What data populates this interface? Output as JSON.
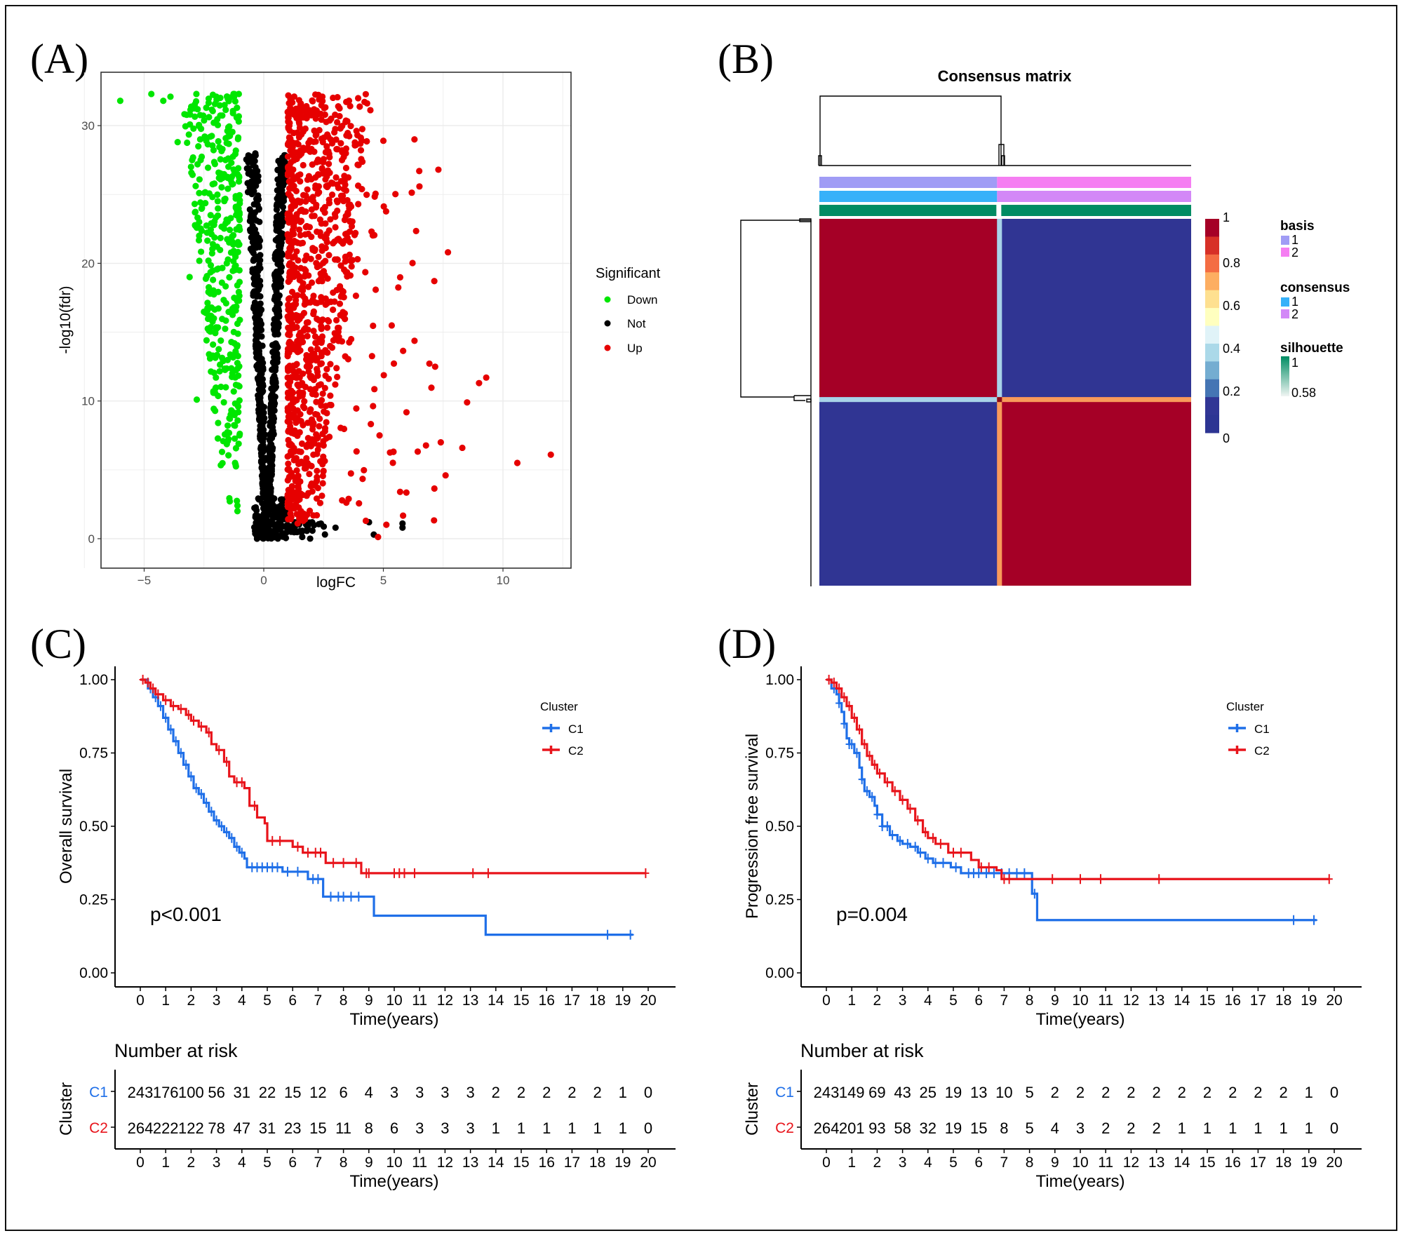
{
  "figure": {
    "panel_labels": [
      "(A)",
      "(B)",
      "(C)",
      "(D)"
    ]
  },
  "chart_data": [
    {
      "panel": "A",
      "type": "scatter",
      "title": "",
      "xlabel": "logFC",
      "ylabel": "-log10(fdr)",
      "xlim": [
        -6.8,
        12.9
      ],
      "ylim": [
        -1.6,
        33.4
      ],
      "xticks": [
        -5,
        0,
        5,
        10
      ],
      "yticks": [
        0,
        10,
        20,
        30
      ],
      "grid": true,
      "legend": {
        "title": "Significant",
        "position": "right",
        "entries": [
          {
            "label": "Down",
            "color": "#00e600"
          },
          {
            "label": "Not",
            "color": "#000000"
          },
          {
            "label": "Up",
            "color": "#e60000"
          }
        ]
      },
      "groups": [
        {
          "name": "Down",
          "color": "#00e600",
          "description": "logFC < -1, spread from -6 to -1; fdr up to ~32",
          "notable_points": [
            [
              -6.0,
              31.8
            ],
            [
              -4.7,
              32.3
            ],
            [
              -4.2,
              31.8
            ],
            [
              -3.9,
              32.1
            ],
            [
              -3.6,
              28.8
            ],
            [
              -3.1,
              19.0
            ],
            [
              -2.8,
              10.1
            ],
            [
              -2.7,
              22.0
            ],
            [
              -2.7,
              23.0
            ],
            [
              -2.7,
              25.1
            ],
            [
              -2.0,
              11.7
            ],
            [
              -1.7,
              12.9
            ],
            [
              -1.5,
              7.1
            ],
            [
              -1.2,
              5.5
            ],
            [
              -1.1,
              2.4
            ],
            [
              -1.1,
              2.0
            ]
          ]
        },
        {
          "name": "Not",
          "color": "#000000",
          "description": "-1 < logFC < 1, V-shaped cloud from 0 to ~28",
          "notable_points": [
            [
              -0.2,
              21.3
            ],
            [
              3.0,
              0.8
            ],
            [
              4.4,
              1.2
            ],
            [
              4.6,
              0.3
            ],
            [
              5.8,
              1.1
            ],
            [
              5.8,
              0.8
            ]
          ]
        },
        {
          "name": "Up",
          "color": "#e60000",
          "description": "logFC > 1, dense from 1 to 4, sparse to 12",
          "notable_points": [
            [
              5.0,
              28.9
            ],
            [
              6.3,
              29.0
            ],
            [
              7.3,
              26.8
            ],
            [
              6.5,
              26.7
            ],
            [
              7.7,
              20.8
            ],
            [
              9.3,
              11.7
            ],
            [
              9.0,
              11.3
            ],
            [
              8.5,
              9.9
            ],
            [
              8.3,
              6.6
            ],
            [
              10.6,
              5.5
            ],
            [
              12.0,
              6.1
            ],
            [
              7.6,
              4.6
            ],
            [
              7.4,
              7.0
            ],
            [
              5.7,
              3.4
            ]
          ]
        }
      ]
    },
    {
      "panel": "B",
      "type": "heatmap",
      "title": "Consensus matrix",
      "clusters": 2,
      "cluster_fraction": [
        0.478,
        0.522
      ],
      "matrix": [
        [
          1,
          0
        ],
        [
          0,
          1
        ]
      ],
      "colorbar": {
        "min": 0,
        "max": 1,
        "ticks": [
          "1",
          "0.8",
          "0.6",
          "0.4",
          "0.2",
          "0"
        ],
        "colors": [
          "#a50026",
          "#d73027",
          "#f46d43",
          "#fdae61",
          "#fee090",
          "#ffffbf",
          "#e0f3f8",
          "#abd9e9",
          "#74add1",
          "#4575b4",
          "#313695",
          "#2d3593"
        ]
      },
      "annotations": [
        {
          "name": "basis",
          "entries": [
            {
              "label": "1",
              "color": "#a09cf5"
            },
            {
              "label": "2",
              "color": "#f57ef2"
            }
          ]
        },
        {
          "name": "consensus",
          "entries": [
            {
              "label": "1",
              "color": "#37b1f9"
            },
            {
              "label": "2",
              "color": "#d388f7"
            }
          ]
        },
        {
          "name": "silhouette",
          "range_labels": [
            "1",
            "0.58"
          ],
          "color_high": "#008c63",
          "color_low": "#f0f5f3"
        }
      ],
      "cell_colors": {
        "high": "#a50026",
        "low": "#303593",
        "divider_top_left": "#a8d3e8",
        "divider_bottom_right": "#f89b5a"
      }
    },
    {
      "panel": "C",
      "type": "line",
      "subtype": "kaplan-meier",
      "xlabel": "Time(years)",
      "ylabel": "Overall survival",
      "xlim": [
        0,
        20
      ],
      "ylim": [
        0,
        1
      ],
      "xticks": [
        0,
        1,
        2,
        3,
        4,
        5,
        6,
        7,
        8,
        9,
        10,
        11,
        12,
        13,
        14,
        15,
        16,
        17,
        18,
        19,
        20
      ],
      "yticks": [
        "0.00",
        "0.25",
        "0.50",
        "0.75",
        "1.00"
      ],
      "annotation": "p<0.001",
      "legend": {
        "title": "Cluster",
        "position": "top-right"
      },
      "series": [
        {
          "name": "C1",
          "color": "#1f6fe8",
          "steps": [
            [
              0,
              1.0
            ],
            [
              0.3,
              0.97
            ],
            [
              0.5,
              0.94
            ],
            [
              0.7,
              0.91
            ],
            [
              0.9,
              0.87
            ],
            [
              1.1,
              0.83
            ],
            [
              1.3,
              0.79
            ],
            [
              1.5,
              0.75
            ],
            [
              1.7,
              0.71
            ],
            [
              1.9,
              0.67
            ],
            [
              2.1,
              0.63
            ],
            [
              2.3,
              0.61
            ],
            [
              2.5,
              0.58
            ],
            [
              2.7,
              0.55
            ],
            [
              2.9,
              0.52
            ],
            [
              3.1,
              0.5
            ],
            [
              3.3,
              0.48
            ],
            [
              3.5,
              0.46
            ],
            [
              3.7,
              0.43
            ],
            [
              3.9,
              0.41
            ],
            [
              4.1,
              0.39
            ],
            [
              4.2,
              0.36
            ],
            [
              5.6,
              0.345
            ],
            [
              6.6,
              0.32
            ],
            [
              7.2,
              0.26
            ],
            [
              9.2,
              0.195
            ],
            [
              13.6,
              0.13
            ],
            [
              19.4,
              0.13
            ]
          ],
          "censor_times": [
            0.4,
            0.6,
            0.8,
            1.0,
            1.2,
            1.4,
            1.6,
            1.8,
            2.0,
            2.2,
            2.4,
            2.6,
            2.8,
            3.0,
            3.2,
            3.4,
            3.6,
            3.8,
            4.0,
            4.4,
            4.6,
            4.8,
            5.0,
            5.2,
            5.4,
            5.8,
            6.2,
            6.8,
            7.0,
            7.5,
            7.8,
            8.0,
            8.3,
            8.6,
            18.4,
            19.3
          ],
          "at_risk": [
            243,
            176,
            100,
            56,
            31,
            22,
            15,
            12,
            6,
            4,
            3,
            3,
            3,
            3,
            2,
            2,
            2,
            2,
            2,
            1,
            0
          ]
        },
        {
          "name": "C2",
          "color": "#e8141b",
          "steps": [
            [
              0,
              1.0
            ],
            [
              0.2,
              0.99
            ],
            [
              0.4,
              0.97
            ],
            [
              0.6,
              0.95
            ],
            [
              0.9,
              0.93
            ],
            [
              1.2,
              0.91
            ],
            [
              1.5,
              0.9
            ],
            [
              1.8,
              0.88
            ],
            [
              2.0,
              0.86
            ],
            [
              2.3,
              0.84
            ],
            [
              2.6,
              0.82
            ],
            [
              2.8,
              0.78
            ],
            [
              3.0,
              0.76
            ],
            [
              3.3,
              0.72
            ],
            [
              3.5,
              0.67
            ],
            [
              3.7,
              0.65
            ],
            [
              4.1,
              0.63
            ],
            [
              4.3,
              0.57
            ],
            [
              4.6,
              0.53
            ],
            [
              4.9,
              0.51
            ],
            [
              5.0,
              0.45
            ],
            [
              6.0,
              0.43
            ],
            [
              6.4,
              0.41
            ],
            [
              7.3,
              0.375
            ],
            [
              8.7,
              0.34
            ],
            [
              19.9,
              0.34
            ]
          ],
          "censor_times": [
            0.1,
            0.3,
            0.5,
            0.7,
            1.0,
            1.3,
            1.6,
            1.9,
            2.1,
            2.4,
            2.7,
            3.1,
            3.4,
            3.8,
            4.0,
            4.5,
            5.2,
            5.5,
            6.2,
            6.6,
            6.9,
            7.1,
            7.6,
            8.0,
            8.5,
            8.9,
            9.0,
            10.0,
            10.2,
            10.4,
            10.8,
            13.1,
            13.7,
            19.9
          ],
          "at_risk": [
            264,
            222,
            122,
            78,
            47,
            31,
            23,
            15,
            11,
            8,
            6,
            3,
            3,
            3,
            1,
            1,
            1,
            1,
            1,
            1,
            0
          ]
        }
      ],
      "risk_table": {
        "title": "Number at risk",
        "ylabel": "Cluster",
        "xlabel": "Time(years)"
      }
    },
    {
      "panel": "D",
      "type": "line",
      "subtype": "kaplan-meier",
      "xlabel": "Time(years)",
      "ylabel": "Progression free survival",
      "xlim": [
        0,
        20
      ],
      "ylim": [
        0,
        1
      ],
      "xticks": [
        0,
        1,
        2,
        3,
        4,
        5,
        6,
        7,
        8,
        9,
        10,
        11,
        12,
        13,
        14,
        15,
        16,
        17,
        18,
        19,
        20
      ],
      "yticks": [
        "0.00",
        "0.25",
        "0.50",
        "0.75",
        "1.00"
      ],
      "annotation": "p=0.004",
      "legend": {
        "title": "Cluster",
        "position": "top-right"
      },
      "series": [
        {
          "name": "C1",
          "color": "#1f6fe8",
          "steps": [
            [
              0,
              1.0
            ],
            [
              0.2,
              0.97
            ],
            [
              0.4,
              0.95
            ],
            [
              0.5,
              0.92
            ],
            [
              0.6,
              0.89
            ],
            [
              0.7,
              0.85
            ],
            [
              0.8,
              0.8
            ],
            [
              0.9,
              0.78
            ],
            [
              1.1,
              0.75
            ],
            [
              1.3,
              0.7
            ],
            [
              1.4,
              0.66
            ],
            [
              1.5,
              0.62
            ],
            [
              1.7,
              0.6
            ],
            [
              1.9,
              0.57
            ],
            [
              2.0,
              0.54
            ],
            [
              2.2,
              0.5
            ],
            [
              2.5,
              0.47
            ],
            [
              2.8,
              0.45
            ],
            [
              3.0,
              0.44
            ],
            [
              3.3,
              0.43
            ],
            [
              3.6,
              0.41
            ],
            [
              3.9,
              0.39
            ],
            [
              4.2,
              0.375
            ],
            [
              4.9,
              0.36
            ],
            [
              5.3,
              0.34
            ],
            [
              8.1,
              0.27
            ],
            [
              8.3,
              0.18
            ],
            [
              19.3,
              0.18
            ]
          ],
          "censor_times": [
            0.3,
            0.5,
            0.7,
            0.9,
            1.0,
            1.2,
            1.4,
            1.6,
            1.8,
            2.0,
            2.2,
            2.4,
            2.6,
            2.9,
            3.2,
            3.5,
            3.7,
            4.0,
            4.3,
            4.6,
            5.1,
            5.6,
            5.8,
            6.0,
            6.3,
            6.6,
            6.9,
            7.2,
            7.5,
            7.8,
            8.2,
            18.4,
            19.2
          ],
          "at_risk": [
            243,
            149,
            69,
            43,
            25,
            19,
            13,
            10,
            5,
            2,
            2,
            2,
            2,
            2,
            2,
            2,
            2,
            2,
            2,
            1,
            0
          ]
        },
        {
          "name": "C2",
          "color": "#e8141b",
          "steps": [
            [
              0,
              1.0
            ],
            [
              0.2,
              0.99
            ],
            [
              0.4,
              0.97
            ],
            [
              0.6,
              0.94
            ],
            [
              0.8,
              0.91
            ],
            [
              1.0,
              0.87
            ],
            [
              1.2,
              0.83
            ],
            [
              1.4,
              0.78
            ],
            [
              1.6,
              0.74
            ],
            [
              1.8,
              0.71
            ],
            [
              2.0,
              0.68
            ],
            [
              2.3,
              0.65
            ],
            [
              2.6,
              0.62
            ],
            [
              2.9,
              0.59
            ],
            [
              3.2,
              0.56
            ],
            [
              3.5,
              0.52
            ],
            [
              3.8,
              0.48
            ],
            [
              4.0,
              0.46
            ],
            [
              4.3,
              0.44
            ],
            [
              4.8,
              0.41
            ],
            [
              5.7,
              0.385
            ],
            [
              6.0,
              0.36
            ],
            [
              6.7,
              0.35
            ],
            [
              6.9,
              0.32
            ],
            [
              19.8,
              0.32
            ]
          ],
          "censor_times": [
            0.1,
            0.3,
            0.5,
            0.7,
            0.9,
            1.1,
            1.3,
            1.5,
            1.7,
            1.9,
            2.1,
            2.4,
            2.7,
            3.0,
            3.3,
            3.6,
            3.9,
            4.2,
            4.5,
            5.0,
            5.3,
            6.1,
            6.4,
            7.0,
            7.2,
            8.9,
            10.0,
            10.8,
            13.1,
            19.8
          ],
          "at_risk": [
            264,
            201,
            93,
            58,
            32,
            19,
            15,
            8,
            5,
            4,
            3,
            2,
            2,
            2,
            1,
            1,
            1,
            1,
            1,
            1,
            0
          ]
        }
      ],
      "risk_table": {
        "title": "Number at risk",
        "ylabel": "Cluster",
        "xlabel": "Time(years)"
      }
    }
  ]
}
